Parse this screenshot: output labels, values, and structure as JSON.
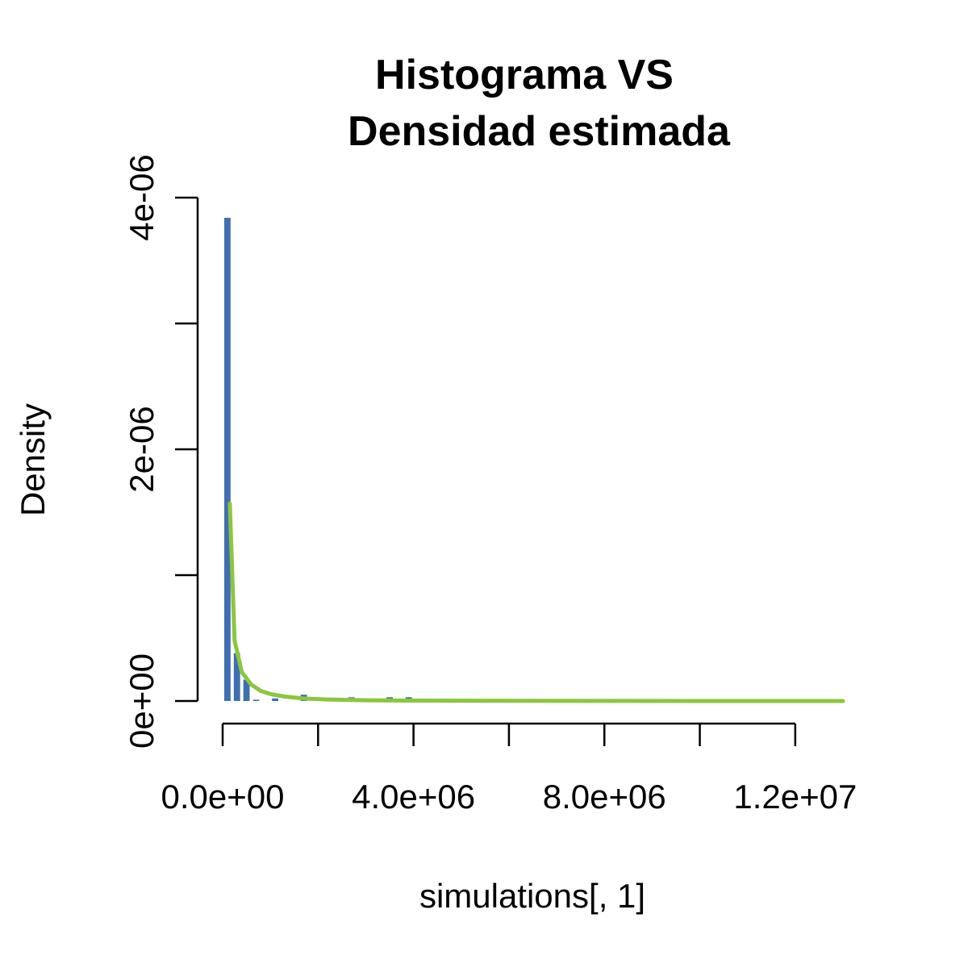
{
  "chart_data": {
    "type": "bar",
    "title_lines": [
      "Histograma VS",
      "Densidad estimada"
    ],
    "xlabel": "simulations[, 1]",
    "ylabel": "Density",
    "xlim": [
      0,
      13000000
    ],
    "ylim": [
      0,
      4e-06
    ],
    "x_ticks": [
      0,
      2000000,
      4000000,
      6000000,
      8000000,
      10000000,
      12000000
    ],
    "x_tick_labels": [
      "0.0e+00",
      "",
      "4.0e+06",
      "",
      "8.0e+06",
      "",
      "1.2e+07"
    ],
    "y_ticks": [
      0,
      1e-06,
      2e-06,
      3e-06,
      4e-06
    ],
    "y_tick_labels": [
      "0e+00",
      "",
      "2e-06",
      "",
      "4e-06"
    ],
    "grid": false,
    "legend": "none",
    "bar_color": "#3f6fb0",
    "curve_color": "#8cc63f",
    "histogram": {
      "bin_width": 200000,
      "bins_start": 0,
      "values": [
        3.84e-06,
        3.8e-07,
        1.7e-07,
        1e-08,
        0.0,
        2e-08,
        0.0,
        0.0,
        5e-08,
        0.0,
        0.0,
        0.0,
        0.0,
        3e-08,
        2e-08,
        0.0,
        0.0,
        3e-08,
        0.0,
        3e-08
      ]
    },
    "density_curve": {
      "x": [
        150000,
        250000,
        400000,
        600000,
        800000,
        1000000,
        1300000,
        1700000,
        2200000,
        3000000,
        4000000,
        6000000,
        8000000,
        10000000,
        12000000,
        13000000
      ],
      "y": [
        1.57e-06,
        4.8e-07,
        2.3e-07,
        1.3e-07,
        8e-08,
        5.5e-08,
        3.5e-08,
        2e-08,
        1.2e-08,
        6e-09,
        3e-09,
        1e-09,
        5e-10,
        2e-10,
        1e-10,
        0.0
      ]
    }
  }
}
